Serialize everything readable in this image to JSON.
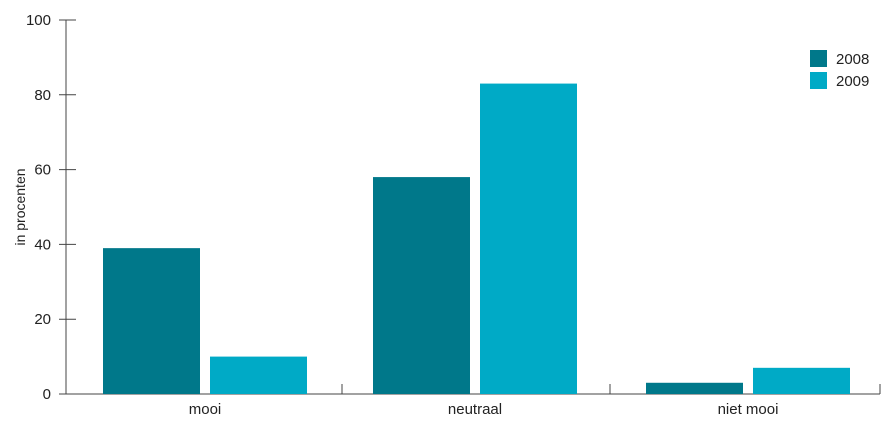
{
  "chart_data": {
    "type": "bar",
    "title": "",
    "xlabel": "",
    "ylabel": "in procenten",
    "ylim": [
      0,
      100
    ],
    "yticks": [
      0,
      20,
      40,
      60,
      80,
      100
    ],
    "ytick_labels": [
      "0",
      "20",
      "40",
      "60",
      "80",
      "100"
    ],
    "categories": [
      "mooi",
      "neutraal",
      "niet mooi"
    ],
    "series": [
      {
        "name": "2008",
        "color": "#00788a",
        "values": [
          39,
          58,
          3
        ]
      },
      {
        "name": "2009",
        "color": "#00aac6",
        "values": [
          10,
          83,
          7
        ]
      }
    ],
    "legend_position": "top-right",
    "grid": false
  }
}
